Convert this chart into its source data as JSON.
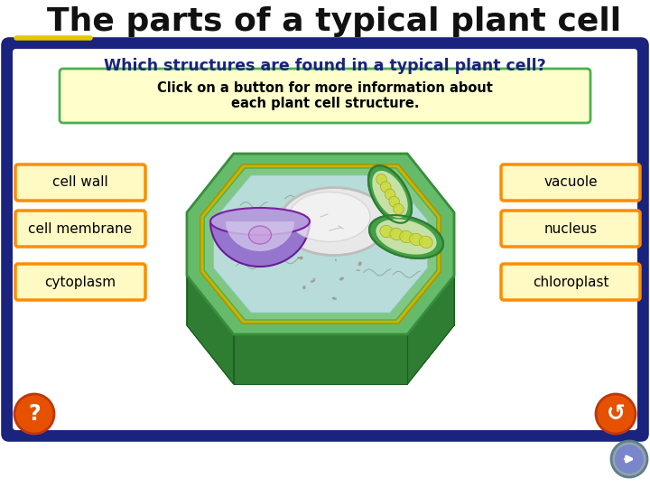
{
  "title": "The parts of a typical plant cell",
  "title_fontsize": 26,
  "title_color": "#111111",
  "background_color": "#ffffff",
  "panel_bg": "#1a237e",
  "panel_inner_bg": "#ffffff",
  "question_text": "Which structures are found in a typical plant cell?",
  "question_color": "#1a237e",
  "info_box_text": "Click on a button for more information about\neach plant cell structure.",
  "info_box_bg": "#ffffcc",
  "info_box_border": "#4caf50",
  "labels_left": [
    "cell wall",
    "cell membrane",
    "cytoplasm"
  ],
  "labels_right": [
    "vacuole",
    "nucleus",
    "chloroplast"
  ],
  "label_bg": "#fff9c4",
  "label_border": "#ff8c00",
  "label_fontsize": 11,
  "cell_outer_dark": "#2e7d32",
  "cell_outer_mid": "#4caf50",
  "cell_outer_light": "#81c784",
  "cell_inner_bg": "#cce8e6",
  "vacuole_color": "#f0f0f0",
  "nucleus_body": "#b39ddb",
  "nucleus_top": "#9575cd",
  "chloroplast_outer": "#388e3c",
  "chloroplast_inner": "#c8e6c9",
  "chloroplast_fill": "#cddc39",
  "yellow_line_color": "#e6c800",
  "orange_circle_color": "#e65100",
  "nav_arrow_color": "#7986cb"
}
